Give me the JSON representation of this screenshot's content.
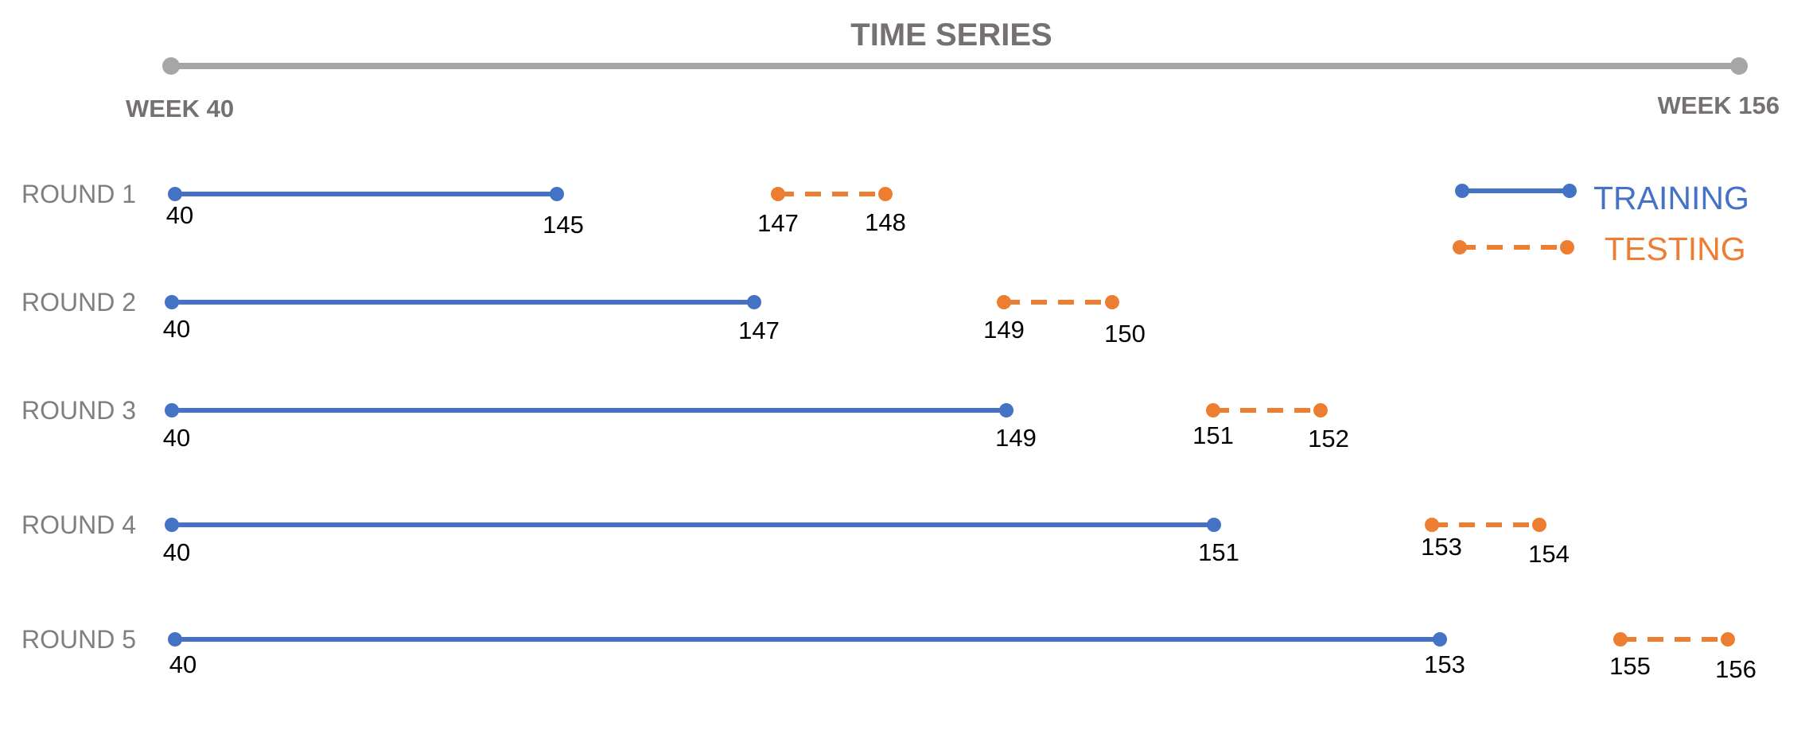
{
  "title": "TIME SERIES",
  "timeline": {
    "start_label": "WEEK 40",
    "end_label": "WEEK 156"
  },
  "colors": {
    "training": "#4472C4",
    "testing": "#ED7D31",
    "axis": "#A6A6A6",
    "title": "#757171",
    "round_label": "#7F7F7F"
  },
  "legend": [
    {
      "key": "training",
      "label": "TRAINING",
      "style": "solid"
    },
    {
      "key": "testing",
      "label": "TESTING",
      "style": "dashed"
    }
  ],
  "chart_data": {
    "type": "timeline",
    "rounds": [
      {
        "label": "ROUND 1",
        "training": [
          40,
          145
        ],
        "testing": [
          147,
          148
        ]
      },
      {
        "label": "ROUND 2",
        "training": [
          40,
          147
        ],
        "testing": [
          149,
          150
        ]
      },
      {
        "label": "ROUND 3",
        "training": [
          40,
          149
        ],
        "testing": [
          151,
          152
        ]
      },
      {
        "label": "ROUND 4",
        "training": [
          40,
          151
        ],
        "testing": [
          153,
          154
        ]
      },
      {
        "label": "ROUND 5",
        "training": [
          40,
          153
        ],
        "testing": [
          155,
          156
        ]
      }
    ]
  }
}
